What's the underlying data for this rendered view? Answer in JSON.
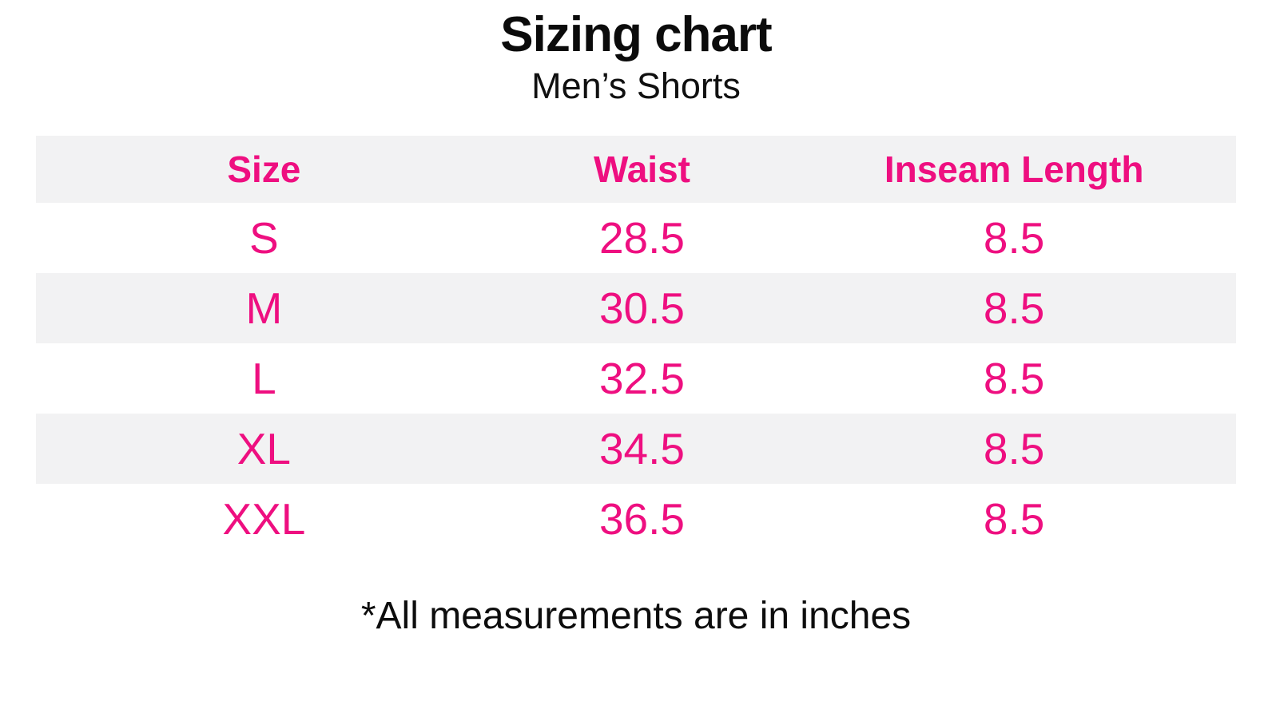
{
  "colors": {
    "accent_pink": "#ee0f80",
    "band_gray": "#f2f2f3",
    "text_black": "#0b0b0b",
    "background": "#ffffff"
  },
  "chart_data": {
    "type": "table",
    "title": "Sizing chart",
    "subtitle": "Men’s Shorts",
    "columns": [
      "Size",
      "Waist",
      "Inseam Length"
    ],
    "rows": [
      [
        "S",
        "28.5",
        "8.5"
      ],
      [
        "M",
        "30.5",
        "8.5"
      ],
      [
        "L",
        "32.5",
        "8.5"
      ],
      [
        "XL",
        "34.5",
        "8.5"
      ],
      [
        "XXL",
        "36.5",
        "8.5"
      ]
    ],
    "footnote": "*All measurements are in inches",
    "units": "inches",
    "layout": {
      "striped_rows": [
        "header",
        "M",
        "XL"
      ],
      "grid": "off",
      "alignment": "center"
    }
  }
}
